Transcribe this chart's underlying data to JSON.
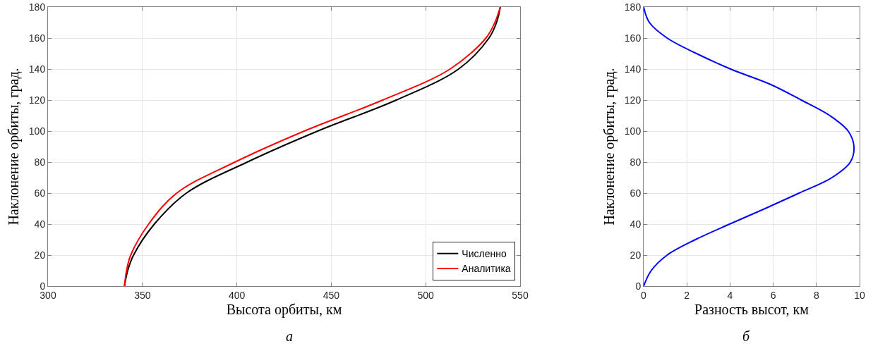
{
  "chart_data": [
    {
      "type": "line",
      "xlabel": "Высота орбиты, км",
      "ylabel": "Наклонение орбиты, град.",
      "xlim": [
        300,
        550
      ],
      "xticks": [
        300,
        350,
        400,
        450,
        500,
        550
      ],
      "ylim": [
        0,
        180
      ],
      "yticks": [
        0,
        20,
        40,
        60,
        80,
        100,
        120,
        140,
        160,
        180
      ],
      "grid": true,
      "legend": "bottom right",
      "annotations": [
        "а"
      ],
      "series": [
        {
          "name": "Численно",
          "color": "#000000",
          "x": [
            340.5,
            342.2,
            345.3,
            356.3,
            373.3,
            405.5,
            442.8,
            484.4,
            517.4,
            533.5,
            537.5,
            539.5
          ],
          "values": [
            0,
            10,
            20,
            40,
            60,
            80,
            100,
            120,
            140,
            160,
            170,
            180
          ]
        },
        {
          "name": "Аналитика",
          "color": "#ff0000",
          "x": [
            340.5,
            341.6,
            343.8,
            353.3,
            368.2,
            399.0,
            435.7,
            477.2,
            512.9,
            531.9,
            536.6,
            539.5
          ],
          "values": [
            0,
            10,
            20,
            40,
            60,
            80,
            100,
            120,
            140,
            160,
            170,
            180
          ]
        }
      ]
    },
    {
      "type": "line",
      "xlabel": "Разность высот, км",
      "ylabel": "Наклонение орбиты, град.",
      "xlim": [
        0,
        10
      ],
      "xticks": [
        0,
        2,
        4,
        6,
        8,
        10
      ],
      "ylim": [
        0,
        180
      ],
      "yticks": [
        0,
        20,
        40,
        60,
        80,
        100,
        120,
        140,
        160,
        180
      ],
      "grid": true,
      "annotations": [
        "б"
      ],
      "series": [
        {
          "color": "#0000ff",
          "x": [
            0,
            0.35,
            1.09,
            2.4,
            3.98,
            5.62,
            7.2,
            8.72,
            9.57,
            9.74,
            9.47,
            8.62,
            7.3,
            5.89,
            4.03,
            2.45,
            1.09,
            0.27,
            0
          ],
          "values": [
            0,
            10,
            20,
            30,
            40,
            50,
            60,
            70,
            80,
            90,
            100,
            110,
            120,
            130,
            140,
            150,
            160,
            170,
            180
          ]
        }
      ]
    }
  ]
}
